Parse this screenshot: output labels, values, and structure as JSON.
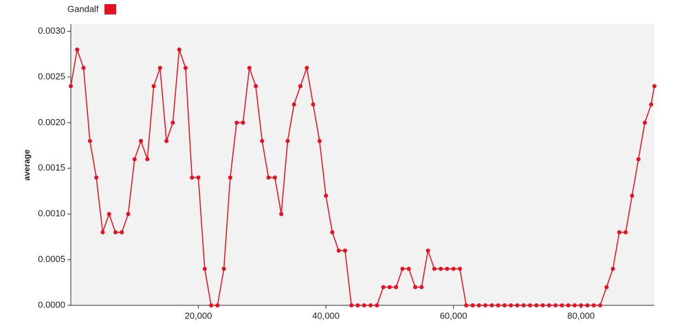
{
  "chart_data": {
    "type": "line",
    "x": [
      0,
      1000,
      2000,
      3000,
      4000,
      5000,
      6000,
      7000,
      8000,
      9000,
      10000,
      11000,
      12000,
      13000,
      14000,
      15000,
      16000,
      17000,
      18000,
      19000,
      20000,
      21000,
      22000,
      23000,
      24000,
      25000,
      26000,
      27000,
      28000,
      29000,
      30000,
      31000,
      32000,
      33000,
      34000,
      35000,
      36000,
      37000,
      38000,
      39000,
      40000,
      41000,
      42000,
      43000,
      44000,
      45000,
      46000,
      47000,
      48000,
      49000,
      50000,
      51000,
      52000,
      53000,
      54000,
      55000,
      56000,
      57000,
      58000,
      59000,
      60000,
      61000,
      62000,
      63000,
      64000,
      65000,
      66000,
      67000,
      68000,
      69000,
      70000,
      71000,
      72000,
      73000,
      74000,
      75000,
      76000,
      77000,
      78000,
      79000,
      80000,
      81000,
      82000,
      83000,
      84000,
      85000,
      86000,
      87000,
      88000,
      89000,
      90000,
      91000,
      91500
    ],
    "series": [
      {
        "name": "Gandalf",
        "color": "#e8101e",
        "values": [
          0.0024,
          0.0028,
          0.0026,
          0.0018,
          0.0014,
          0.0008,
          0.001,
          0.0008,
          0.0008,
          0.001,
          0.0016,
          0.0018,
          0.0016,
          0.0024,
          0.0026,
          0.0018,
          0.002,
          0.0028,
          0.0026,
          0.0014,
          0.0014,
          0.0004,
          0,
          0,
          0.0004,
          0.0014,
          0.002,
          0.002,
          0.0026,
          0.0024,
          0.0018,
          0.0014,
          0.0014,
          0.001,
          0.0018,
          0.0022,
          0.0024,
          0.0026,
          0.0022,
          0.0018,
          0.0012,
          0.0008,
          0.0006,
          0.0006,
          0,
          0,
          0,
          0,
          0,
          0.0002,
          0.0002,
          0.0002,
          0.0004,
          0.0004,
          0.0002,
          0.0002,
          0.0006,
          0.0004,
          0.0004,
          0.0004,
          0.0004,
          0.0004,
          0,
          0,
          0,
          0,
          0,
          0,
          0,
          0,
          0,
          0,
          0,
          0,
          0,
          0,
          0,
          0,
          0,
          0,
          0,
          0,
          0,
          0,
          0.0002,
          0.0004,
          0.0008,
          0.0008,
          0.0012,
          0.0016,
          0.002,
          0.0022,
          0.0024
        ]
      }
    ],
    "y_label": "average",
    "xlim": [
      0,
      91500
    ],
    "ylim": [
      0,
      0.00308
    ],
    "xticks": [
      {
        "value": 20000,
        "label": "20,000"
      },
      {
        "value": 40000,
        "label": "40,000"
      },
      {
        "value": 60000,
        "label": "60,000"
      },
      {
        "value": 80000,
        "label": "80,000"
      }
    ],
    "yticks": [
      {
        "value": 0,
        "label": "0.0000"
      },
      {
        "value": 0.0005,
        "label": "0.0005"
      },
      {
        "value": 0.001,
        "label": "0.0010"
      },
      {
        "value": 0.0015,
        "label": "0.0015"
      },
      {
        "value": 0.002,
        "label": "0.0020"
      },
      {
        "value": 0.0025,
        "label": "0.0025"
      },
      {
        "value": 0.003,
        "label": "0.0030"
      }
    ],
    "legend": "top-left"
  }
}
